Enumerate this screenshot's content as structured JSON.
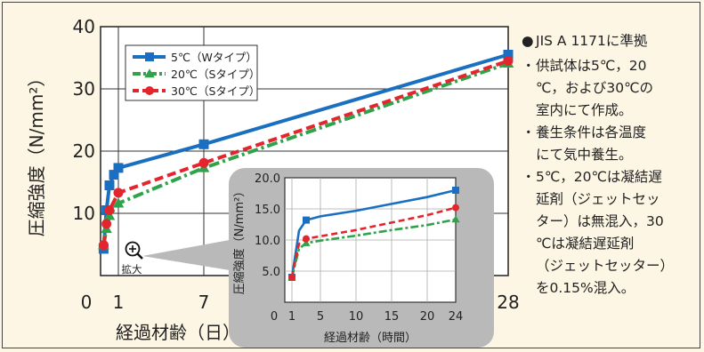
{
  "chart_data": [
    {
      "type": "line",
      "xlabel": "経過材齢（日）",
      "ylabel": "圧縮強度（N/mm²）",
      "xlim": [
        0,
        28
      ],
      "ylim": [
        0,
        40
      ],
      "xticks": [
        "0",
        "1",
        "7",
        "28"
      ],
      "yticks": [
        "10",
        "20",
        "30",
        "40"
      ],
      "grid": true,
      "legend": "top-left",
      "zoom_label": "拡大",
      "series": [
        {
          "name": "5℃（Wタイプ）",
          "color": "#1a6fc0",
          "line": "solid",
          "marker": "square",
          "x": [
            0.17,
            0.33,
            0.5,
            0.75,
            1,
            7,
            28
          ],
          "y": [
            4.3,
            10.5,
            14.5,
            16.2,
            17.3,
            21.1,
            35.5
          ]
        },
        {
          "name": "20℃（Sタイプ）",
          "color": "#2fa34a",
          "line": "dashdot",
          "marker": "triangle",
          "x": [
            0.17,
            0.33,
            0.5,
            1,
            7,
            28
          ],
          "y": [
            4.9,
            7.5,
            9.6,
            11.6,
            17.3,
            34.1
          ]
        },
        {
          "name": "30℃（Sタイプ）",
          "color": "#e3262e",
          "line": "dashed",
          "marker": "circle",
          "x": [
            0.17,
            0.33,
            0.5,
            1,
            7,
            28
          ],
          "y": [
            4.9,
            8.3,
            10.5,
            13.3,
            18.1,
            34.5
          ]
        }
      ]
    },
    {
      "type": "line",
      "xlabel": "経過材齢（時間）",
      "ylabel": "圧縮強度（N/mm²）",
      "xlim": [
        0,
        24
      ],
      "ylim": [
        0,
        20
      ],
      "xticks": [
        "0",
        "1",
        "5",
        "10",
        "15",
        "20",
        "24"
      ],
      "yticks": [
        "5.0",
        "10.0",
        "15.0",
        "20.0"
      ],
      "grid": true,
      "series": [
        {
          "name": "5℃（Wタイプ）",
          "color": "#1a6fc0",
          "line": "solid",
          "marker": "square",
          "x": [
            1,
            2,
            3,
            5,
            10,
            15,
            20,
            24
          ],
          "y": [
            4.0,
            11.5,
            13.2,
            13.8,
            14.7,
            15.8,
            16.9,
            18.0
          ]
        },
        {
          "name": "20℃（Sタイプ）",
          "color": "#2fa34a",
          "line": "dashdot",
          "marker": "triangle",
          "x": [
            1,
            2,
            3,
            5,
            10,
            15,
            20,
            24
          ],
          "y": [
            4.0,
            8.6,
            9.5,
            9.9,
            10.7,
            11.6,
            12.4,
            13.3
          ]
        },
        {
          "name": "30℃（Sタイプ）",
          "color": "#e3262e",
          "line": "dashed",
          "marker": "circle",
          "x": [
            1,
            2,
            3,
            5,
            10,
            15,
            20,
            24
          ],
          "y": [
            4.0,
            9.4,
            10.2,
            10.6,
            11.6,
            12.8,
            14.0,
            15.2
          ]
        }
      ]
    }
  ],
  "notes": [
    {
      "bullet": "●",
      "lines": [
        "JIS A 1171に準拠"
      ]
    },
    {
      "bullet": "・",
      "lines": [
        "供試体は5℃，20",
        "℃，および30℃の",
        "室内にて作成。"
      ]
    },
    {
      "bullet": "・",
      "lines": [
        "養生条件は各温度",
        "にて気中養生。"
      ]
    },
    {
      "bullet": "・",
      "lines": [
        "5℃，20℃は凝結遅",
        "延剤（ジェットセッ",
        "ター）は無混入，30",
        "℃は凝結遅延剤",
        "（ジェットセッター）",
        "を0.15%混入。"
      ]
    }
  ]
}
